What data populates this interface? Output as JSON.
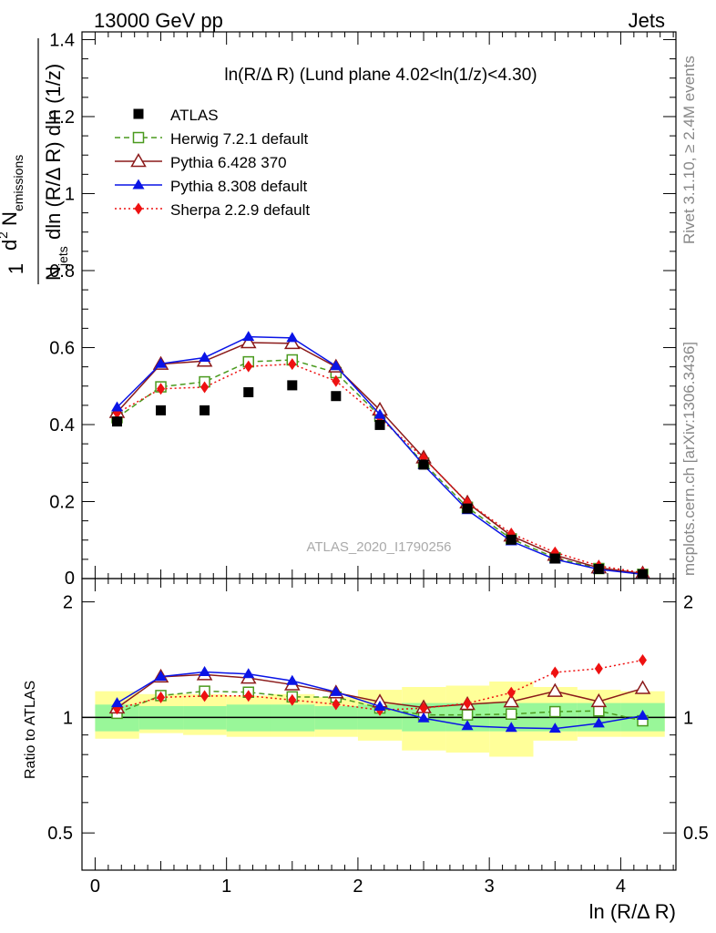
{
  "header": {
    "left": "13000 GeV pp",
    "right": "Jets",
    "side_top": "Rivet 3.1.10, ≥ 2.4M events",
    "side_bottom": "mcplots.cern.ch [arXiv:1306.3436]",
    "watermark": "ATLAS_2020_I1790256"
  },
  "chart_data": {
    "type": "line",
    "title": "ln(R/Δ R) (Lund plane 4.02<ln(1/z)<4.30)",
    "xlabel": "ln (R/Δ R)",
    "ylabel_main": "1/N_jets d²N_emissions / dln(R/Δ R) dln(1/z)",
    "ylabel_ratio": "Ratio to ATLAS",
    "xlim": [
      -0.1,
      4.42
    ],
    "ylim_main": [
      0,
      1.42
    ],
    "ylim_ratio": [
      0.4,
      2.3
    ],
    "ratio_log_scale": true,
    "x_ticks": [
      0,
      1,
      2,
      3,
      4
    ],
    "x_tick_labels": [
      "0",
      "1",
      "2",
      "3",
      "4"
    ],
    "y_ticks_main": [
      0.2,
      0.4,
      0.6,
      0.8,
      1,
      1.2,
      1.4
    ],
    "y_tick_labels_main": [
      "0.2",
      "0.4",
      "0.6",
      "0.8",
      "1",
      "1.2",
      "1.4"
    ],
    "y_zero_label": "0",
    "y_ticks_ratio": [
      0.5,
      1,
      2
    ],
    "y_tick_labels_ratio": [
      "0.5",
      "1",
      "2"
    ],
    "legend_position": "top-left",
    "bins": [
      [
        0,
        0.335
      ],
      [
        0.335,
        0.67
      ],
      [
        0.67,
        1.0
      ],
      [
        1.0,
        1.335
      ],
      [
        1.335,
        1.67
      ],
      [
        1.67,
        2.0
      ],
      [
        2.0,
        2.335
      ],
      [
        2.335,
        2.67
      ],
      [
        2.67,
        3.0
      ],
      [
        3.0,
        3.335
      ],
      [
        3.335,
        3.67
      ],
      [
        3.67,
        4.0
      ],
      [
        4.0,
        4.335
      ]
    ],
    "x": [
      0.167,
      0.5,
      0.833,
      1.167,
      1.5,
      1.833,
      2.167,
      2.5,
      2.833,
      3.167,
      3.5,
      3.833,
      4.167
    ],
    "atlas": {
      "name": "ATLAS",
      "values": [
        0.408,
        0.437,
        0.437,
        0.484,
        0.502,
        0.474,
        0.399,
        0.296,
        0.182,
        0.101,
        0.052,
        0.025,
        0.011
      ],
      "band_green": [
        [
          0.92,
          1.08
        ],
        [
          0.93,
          1.07
        ],
        [
          0.93,
          1.07
        ],
        [
          0.92,
          1.08
        ],
        [
          0.92,
          1.08
        ],
        [
          0.93,
          1.07
        ],
        [
          0.93,
          1.08
        ],
        [
          0.92,
          1.09
        ],
        [
          0.92,
          1.09
        ],
        [
          0.92,
          1.09
        ],
        [
          0.92,
          1.09
        ],
        [
          0.92,
          1.09
        ],
        [
          0.92,
          1.09
        ]
      ],
      "band_yellow": [
        [
          0.88,
          1.17
        ],
        [
          0.91,
          1.15
        ],
        [
          0.9,
          1.15
        ],
        [
          0.89,
          1.14
        ],
        [
          0.89,
          1.15
        ],
        [
          0.89,
          1.13
        ],
        [
          0.87,
          1.18
        ],
        [
          0.82,
          1.2
        ],
        [
          0.81,
          1.21
        ],
        [
          0.79,
          1.24
        ],
        [
          0.87,
          1.2
        ],
        [
          0.89,
          1.18
        ],
        [
          0.89,
          1.17
        ]
      ]
    },
    "series": [
      {
        "name": "Herwig 7.2.1 default",
        "color": "#4a9a1e",
        "marker": "open-square",
        "linestyle": "dashed",
        "values": [
          0.418,
          0.498,
          0.511,
          0.563,
          0.568,
          0.535,
          0.422,
          0.3,
          0.185,
          0.103,
          0.054,
          0.026,
          0.011
        ],
        "ratio": [
          1.025,
          1.14,
          1.17,
          1.163,
          1.131,
          1.129,
          1.058,
          1.015,
          1.015,
          1.02,
          1.035,
          1.04,
          0.98
        ]
      },
      {
        "name": "Pythia 6.428 370",
        "color": "#8b1a1a",
        "marker": "open-triangle",
        "linestyle": "solid",
        "values": [
          0.432,
          0.557,
          0.565,
          0.613,
          0.611,
          0.55,
          0.438,
          0.314,
          0.197,
          0.111,
          0.061,
          0.028,
          0.013
        ],
        "ratio": [
          1.059,
          1.275,
          1.293,
          1.267,
          1.217,
          1.16,
          1.098,
          1.061,
          1.082,
          1.099,
          1.17,
          1.1,
          1.19
        ]
      },
      {
        "name": "Pythia 8.308 default",
        "color": "#0a14e6",
        "marker": "filled-triangle",
        "linestyle": "solid",
        "values": [
          0.445,
          0.558,
          0.574,
          0.628,
          0.625,
          0.552,
          0.426,
          0.295,
          0.178,
          0.097,
          0.05,
          0.024,
          0.011
        ],
        "ratio": [
          1.09,
          1.277,
          1.313,
          1.297,
          1.245,
          1.165,
          1.068,
          0.995,
          0.95,
          0.94,
          0.935,
          0.965,
          1.01
        ]
      },
      {
        "name": "Sherpa 2.2.9 default",
        "color": "#ee1111",
        "marker": "filled-diamond",
        "linestyle": "dotted",
        "values": [
          0.43,
          0.493,
          0.497,
          0.551,
          0.557,
          0.513,
          0.417,
          0.313,
          0.198,
          0.117,
          0.068,
          0.033,
          0.015
        ],
        "ratio": [
          1.054,
          1.128,
          1.137,
          1.138,
          1.11,
          1.082,
          1.045,
          1.057,
          1.088,
          1.16,
          1.31,
          1.34,
          1.41
        ]
      }
    ]
  }
}
